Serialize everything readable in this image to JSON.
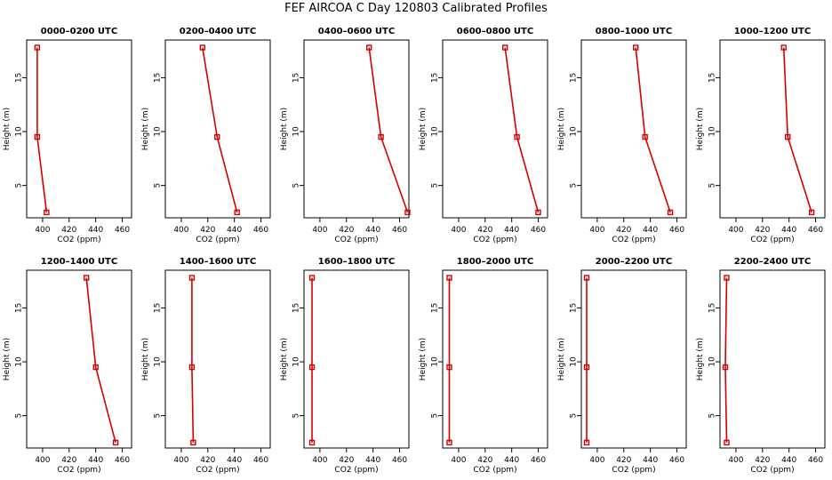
{
  "title": "FEF AIRCOA C  Day 120803  Calibrated Profiles",
  "colors": {
    "series": "#d40000",
    "axis": "#000000"
  },
  "chart_data": [
    {
      "type": "line",
      "title": "0000–0200 UTC",
      "xlabel": "CO2 (ppm)",
      "ylabel": "Height (m)",
      "xlim": [
        388,
        467
      ],
      "ylim": [
        2,
        18.5
      ],
      "xticks": [
        400,
        420,
        440,
        460
      ],
      "yticks": [
        5,
        10,
        15
      ],
      "grid": false,
      "series": [
        {
          "x": [
            403,
            396,
            396
          ],
          "y": [
            2.5,
            9.5,
            17.8
          ]
        }
      ]
    },
    {
      "type": "line",
      "title": "0200–0400 UTC",
      "xlabel": "CO2 (ppm)",
      "ylabel": "Height (m)",
      "xlim": [
        388,
        467
      ],
      "ylim": [
        2,
        18.5
      ],
      "xticks": [
        400,
        420,
        440,
        460
      ],
      "yticks": [
        5,
        10,
        15
      ],
      "grid": false,
      "series": [
        {
          "x": [
            442,
            427,
            416
          ],
          "y": [
            2.5,
            9.5,
            17.8
          ]
        }
      ]
    },
    {
      "type": "line",
      "title": "0400–0600 UTC",
      "xlabel": "CO2 (ppm)",
      "ylabel": "Height (m)",
      "xlim": [
        388,
        467
      ],
      "ylim": [
        2,
        18.5
      ],
      "xticks": [
        400,
        420,
        440,
        460
      ],
      "yticks": [
        5,
        10,
        15
      ],
      "grid": false,
      "series": [
        {
          "x": [
            466,
            446,
            437
          ],
          "y": [
            2.5,
            9.5,
            17.8
          ]
        }
      ]
    },
    {
      "type": "line",
      "title": "0600–0800 UTC",
      "xlabel": "CO2 (ppm)",
      "ylabel": "Height (m)",
      "xlim": [
        388,
        467
      ],
      "ylim": [
        2,
        18.5
      ],
      "xticks": [
        400,
        420,
        440,
        460
      ],
      "yticks": [
        5,
        10,
        15
      ],
      "grid": false,
      "series": [
        {
          "x": [
            460,
            444,
            435
          ],
          "y": [
            2.5,
            9.5,
            17.8
          ]
        }
      ]
    },
    {
      "type": "line",
      "title": "0800–1000 UTC",
      "xlabel": "CO2 (ppm)",
      "ylabel": "Height (m)",
      "xlim": [
        388,
        467
      ],
      "ylim": [
        2,
        18.5
      ],
      "xticks": [
        400,
        420,
        440,
        460
      ],
      "yticks": [
        5,
        10,
        15
      ],
      "grid": false,
      "series": [
        {
          "x": [
            455,
            436,
            429
          ],
          "y": [
            2.5,
            9.5,
            17.8
          ]
        }
      ]
    },
    {
      "type": "line",
      "title": "1000–1200 UTC",
      "xlabel": "CO2 (ppm)",
      "ylabel": "Height (m)",
      "xlim": [
        388,
        467
      ],
      "ylim": [
        2,
        18.5
      ],
      "xticks": [
        400,
        420,
        440,
        460
      ],
      "yticks": [
        5,
        10,
        15
      ],
      "grid": false,
      "series": [
        {
          "x": [
            457,
            439,
            436
          ],
          "y": [
            2.5,
            9.5,
            17.8
          ]
        }
      ]
    },
    {
      "type": "line",
      "title": "1200–1400 UTC",
      "xlabel": "CO2 (ppm)",
      "ylabel": "Height (m)",
      "xlim": [
        388,
        467
      ],
      "ylim": [
        2,
        18.5
      ],
      "xticks": [
        400,
        420,
        440,
        460
      ],
      "yticks": [
        5,
        10,
        15
      ],
      "grid": false,
      "series": [
        {
          "x": [
            455,
            440,
            433
          ],
          "y": [
            2.5,
            9.5,
            17.8
          ]
        }
      ]
    },
    {
      "type": "line",
      "title": "1400–1600 UTC",
      "xlabel": "CO2 (ppm)",
      "ylabel": "Height (m)",
      "xlim": [
        388,
        467
      ],
      "ylim": [
        2,
        18.5
      ],
      "xticks": [
        400,
        420,
        440,
        460
      ],
      "yticks": [
        5,
        10,
        15
      ],
      "grid": false,
      "series": [
        {
          "x": [
            409,
            408,
            408
          ],
          "y": [
            2.5,
            9.5,
            17.8
          ]
        }
      ]
    },
    {
      "type": "line",
      "title": "1600–1800 UTC",
      "xlabel": "CO2 (ppm)",
      "ylabel": "Height (m)",
      "xlim": [
        388,
        467
      ],
      "ylim": [
        2,
        18.5
      ],
      "xticks": [
        400,
        420,
        440,
        460
      ],
      "yticks": [
        5,
        10,
        15
      ],
      "grid": false,
      "series": [
        {
          "x": [
            394,
            394,
            394
          ],
          "y": [
            2.5,
            9.5,
            17.8
          ]
        }
      ]
    },
    {
      "type": "line",
      "title": "1800–2000 UTC",
      "xlabel": "CO2 (ppm)",
      "ylabel": "Height (m)",
      "xlim": [
        388,
        467
      ],
      "ylim": [
        2,
        18.5
      ],
      "xticks": [
        400,
        420,
        440,
        460
      ],
      "yticks": [
        5,
        10,
        15
      ],
      "grid": false,
      "series": [
        {
          "x": [
            393,
            393,
            393
          ],
          "y": [
            2.5,
            9.5,
            17.8
          ]
        }
      ]
    },
    {
      "type": "line",
      "title": "2000–2200 UTC",
      "xlabel": "CO2 (ppm)",
      "ylabel": "Height (m)",
      "xlim": [
        388,
        467
      ],
      "ylim": [
        2,
        18.5
      ],
      "xticks": [
        400,
        420,
        440,
        460
      ],
      "yticks": [
        5,
        10,
        15
      ],
      "grid": false,
      "series": [
        {
          "x": [
            392,
            392,
            392
          ],
          "y": [
            2.5,
            9.5,
            17.8
          ]
        }
      ]
    },
    {
      "type": "line",
      "title": "2200–2400 UTC",
      "xlabel": "CO2 (ppm)",
      "ylabel": "Height (m)",
      "xlim": [
        388,
        467
      ],
      "ylim": [
        2,
        18.5
      ],
      "xticks": [
        400,
        420,
        440,
        460
      ],
      "yticks": [
        5,
        10,
        15
      ],
      "grid": false,
      "series": [
        {
          "x": [
            393,
            392,
            393
          ],
          "y": [
            2.5,
            9.5,
            17.8
          ]
        }
      ]
    }
  ]
}
